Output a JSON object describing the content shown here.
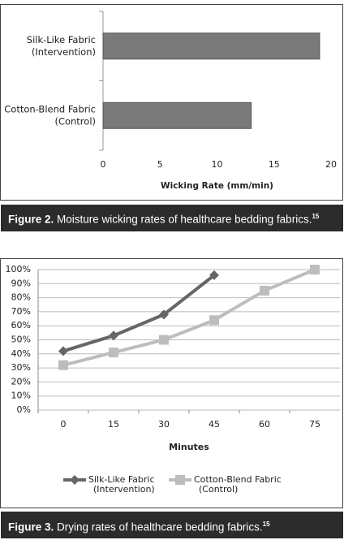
{
  "chart_data": [
    {
      "type": "hbar",
      "categories": [
        [
          "Silk-Like Fabric",
          "(Intervention)"
        ],
        [
          "Cotton-Blend Fabric",
          "(Control)"
        ]
      ],
      "values": [
        19,
        13
      ],
      "color": "#7a7a7a",
      "xlim": [
        0,
        20
      ],
      "xticks": [
        0,
        5,
        10,
        15,
        20
      ],
      "x_label": "Wicking Rate (mm/min)",
      "grid": false
    },
    {
      "type": "line",
      "categories": [
        "0",
        "15",
        "30",
        "45",
        "60",
        "75"
      ],
      "series": [
        {
          "name": [
            "Silk-Like Fabric",
            "(Intervention)"
          ],
          "color": "#666666",
          "marker": "diamond",
          "values": [
            42,
            53,
            68,
            96,
            null,
            null
          ]
        },
        {
          "name": [
            "Cotton-Blend Fabric",
            "(Control)"
          ],
          "color": "#bdbdbd",
          "marker": "square",
          "values": [
            32,
            41,
            50,
            64,
            85,
            100
          ]
        }
      ],
      "ylim": [
        0,
        100
      ],
      "yticks": [
        {
          "value": 0,
          "label": "0%"
        },
        {
          "value": 10,
          "label": "10%"
        },
        {
          "value": 20,
          "label": "20%"
        },
        {
          "value": 30,
          "label": "30%"
        },
        {
          "value": 40,
          "label": "40%"
        },
        {
          "value": 50,
          "label": "50%"
        },
        {
          "value": 60,
          "label": "60%"
        },
        {
          "value": 70,
          "label": "70%"
        },
        {
          "value": 80,
          "label": "80%"
        },
        {
          "value": 90,
          "label": "90%"
        },
        {
          "value": 100,
          "label": "100%"
        }
      ],
      "x_label": "Minutes",
      "grid": true,
      "legend": "bottom"
    }
  ],
  "captions": [
    {
      "label": "Figure 2.",
      "text": "Moisture wicking rates of healthcare bedding fabrics.",
      "ref": "15"
    },
    {
      "label": "Figure 3.",
      "text": "Drying rates of healthcare bedding fabrics.",
      "ref": "15"
    }
  ]
}
